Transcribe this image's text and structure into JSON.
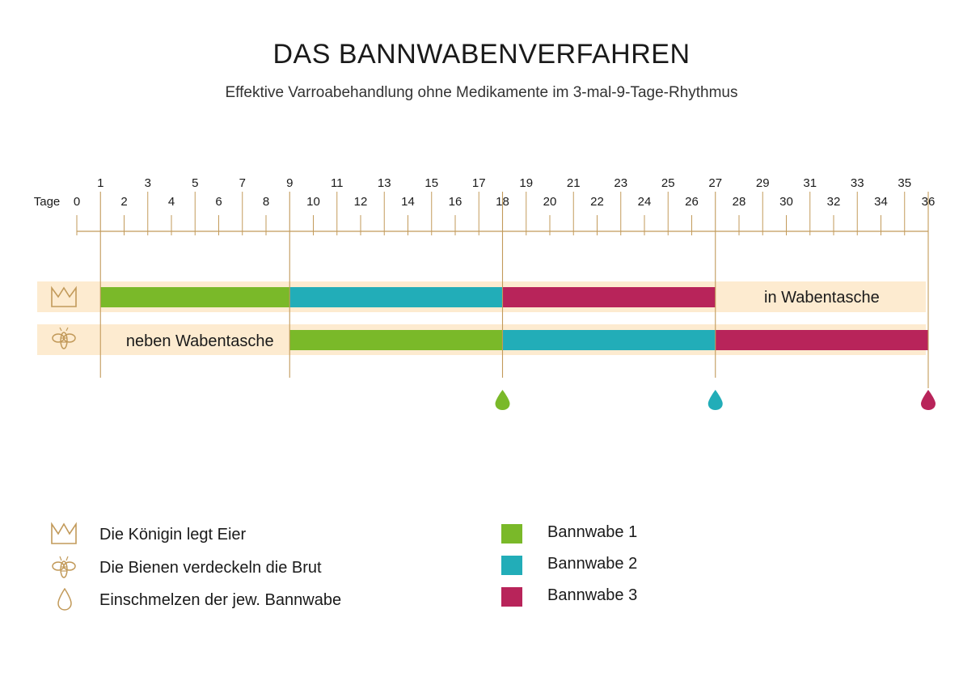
{
  "title": "DAS BANNWABENVERFAHREN",
  "subtitle": "Effektive Varroabehandlung ohne Medikamente im 3-mal-9-Tage-Rhythmus",
  "axis": {
    "label": "Tage",
    "odd_labels": [
      "1",
      "3",
      "5",
      "7",
      "9",
      "11",
      "13",
      "15",
      "17",
      "19",
      "21",
      "23",
      "25",
      "27",
      "29",
      "31",
      "33",
      "35"
    ],
    "even_labels": [
      "0",
      "2",
      "4",
      "6",
      "8",
      "10",
      "12",
      "14",
      "16",
      "18",
      "20",
      "22",
      "24",
      "26",
      "28",
      "30",
      "32",
      "34",
      "36"
    ]
  },
  "rows": {
    "queen": {
      "icon": "crown-icon",
      "segments": [
        {
          "comb": "Bannwabe 1",
          "start": 1,
          "end": 9
        },
        {
          "comb": "Bannwabe 2",
          "start": 9,
          "end": 18
        },
        {
          "comb": "Bannwabe 3",
          "start": 18,
          "end": 27
        }
      ],
      "text": "in Wabentasche",
      "text_range": [
        27,
        36
      ]
    },
    "bees": {
      "icon": "bee-icon",
      "segments": [
        {
          "comb": "Bannwabe 1",
          "start": 9,
          "end": 18
        },
        {
          "comb": "Bannwabe 2",
          "start": 18,
          "end": 27
        },
        {
          "comb": "Bannwabe 3",
          "start": 27,
          "end": 36
        }
      ],
      "text": "neben Wabentasche",
      "text_range": [
        1,
        9
      ]
    }
  },
  "phase_markers": [
    1,
    9,
    18,
    27,
    36
  ],
  "drops": [
    {
      "day": 18,
      "comb": "Bannwabe 1"
    },
    {
      "day": 27,
      "comb": "Bannwabe 2"
    },
    {
      "day": 36,
      "comb": "Bannwabe 3"
    }
  ],
  "colors": {
    "Bannwabe 1": "#7ab929",
    "Bannwabe 2": "#22adb8",
    "Bannwabe 3": "#b8245a",
    "band": "#fdebd0",
    "axis": "#c29a5a"
  },
  "legend": {
    "symbols": [
      {
        "icon": "crown-icon",
        "text": "Die Königin legt Eier"
      },
      {
        "icon": "bee-icon",
        "text": "Die Bienen verdeckeln die Brut"
      },
      {
        "icon": "drop-icon",
        "text": "Einschmelzen der jew. Bannwabe"
      }
    ],
    "combs": [
      {
        "name": "Bannwabe 1",
        "color": "#7ab929"
      },
      {
        "name": "Bannwabe 2",
        "color": "#22adb8"
      },
      {
        "name": "Bannwabe 3",
        "color": "#b8245a"
      }
    ]
  }
}
